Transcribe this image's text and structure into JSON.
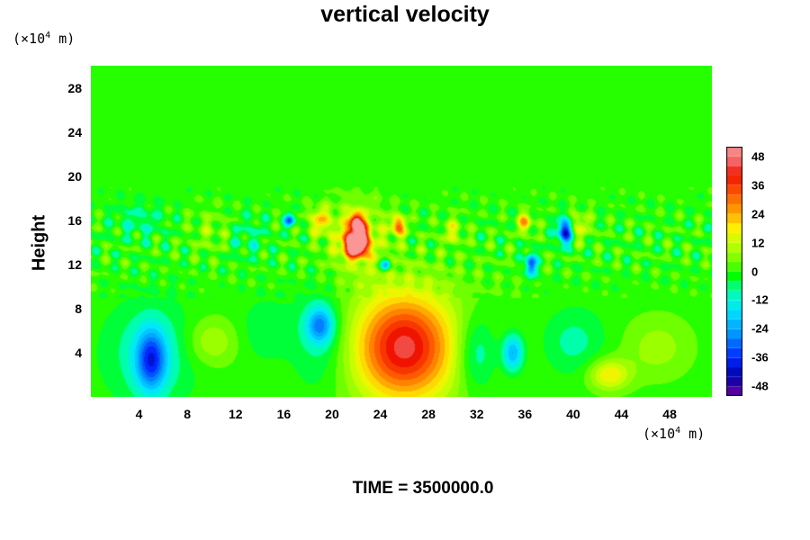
{
  "chart_data": {
    "type": "heatmap",
    "title": "vertical velocity",
    "ylabel": "Height",
    "y_unit": {
      "prefix": "(×10",
      "exp": "4",
      "suffix": " m)"
    },
    "x_unit": {
      "prefix": "(×10",
      "exp": "4",
      "suffix": " m)"
    },
    "x_ticks": [
      "4",
      "8",
      "12",
      "16",
      "20",
      "24",
      "28",
      "32",
      "36",
      "40",
      "44",
      "48"
    ],
    "x_tick_values": [
      4,
      8,
      12,
      16,
      20,
      24,
      28,
      32,
      36,
      40,
      44,
      48
    ],
    "y_ticks": [
      "4",
      "8",
      "12",
      "16",
      "20",
      "24",
      "28"
    ],
    "y_tick_values": [
      4,
      8,
      12,
      16,
      20,
      24,
      28
    ],
    "xlim": [
      0,
      51.5
    ],
    "ylim": [
      0,
      30
    ],
    "colorbar": {
      "ticks": [
        "48",
        "36",
        "24",
        "12",
        "0",
        "-12",
        "-24",
        "-36",
        "-48"
      ],
      "values": [
        48,
        36,
        24,
        12,
        0,
        -12,
        -24,
        -36,
        -48
      ],
      "range": [
        -52,
        52
      ]
    },
    "features": [
      {
        "x": 26,
        "y": 4.5,
        "sx": 2.6,
        "sy": 3.2,
        "v": 34
      },
      {
        "x": 26,
        "y": 4.5,
        "sx": 5.5,
        "sy": 4.5,
        "v": 10
      },
      {
        "x": 5,
        "y": 3.3,
        "sx": 0.9,
        "sy": 2.0,
        "v": -30
      },
      {
        "x": 5,
        "y": 4,
        "sx": 2.5,
        "sy": 3.0,
        "v": -10
      },
      {
        "x": 19,
        "y": 6.5,
        "sx": 0.8,
        "sy": 1.2,
        "v": -25
      },
      {
        "x": 19,
        "y": 5,
        "sx": 1.8,
        "sy": 3.5,
        "v": -10
      },
      {
        "x": 10,
        "y": 5,
        "sx": 1.5,
        "sy": 1.5,
        "v": 10
      },
      {
        "x": 32,
        "y": 4,
        "sx": 1.2,
        "sy": 2.5,
        "v": -14
      },
      {
        "x": 35,
        "y": 4,
        "sx": 0.6,
        "sy": 1.2,
        "v": -24
      },
      {
        "x": 43,
        "y": 2,
        "sx": 1.2,
        "sy": 1.0,
        "v": 18
      },
      {
        "x": 47,
        "y": 4.5,
        "sx": 2.0,
        "sy": 2.0,
        "v": 8
      },
      {
        "x": 40,
        "y": 5,
        "sx": 1.8,
        "sy": 2.0,
        "v": -8
      },
      {
        "x": 14.5,
        "y": 6,
        "sx": 1.5,
        "sy": 2.0,
        "v": -6
      },
      {
        "x": 22,
        "y": 15.8,
        "sx": 0.35,
        "sy": 0.6,
        "v": 48
      },
      {
        "x": 21.5,
        "y": 14,
        "sx": 0.4,
        "sy": 0.8,
        "v": 44
      },
      {
        "x": 22.5,
        "y": 14.5,
        "sx": 0.4,
        "sy": 0.8,
        "v": 42
      },
      {
        "x": 22.2,
        "y": 13.5,
        "sx": 0.5,
        "sy": 0.6,
        "v": 36
      },
      {
        "x": 22,
        "y": 14.5,
        "sx": 1.8,
        "sy": 2.2,
        "v": 14
      },
      {
        "x": 25.5,
        "y": 15.5,
        "sx": 0.4,
        "sy": 0.6,
        "v": 30
      },
      {
        "x": 19,
        "y": 16,
        "sx": 0.6,
        "sy": 0.8,
        "v": 18
      },
      {
        "x": 39.3,
        "y": 15,
        "sx": 0.4,
        "sy": 0.8,
        "v": -44
      },
      {
        "x": 36.5,
        "y": 12,
        "sx": 0.3,
        "sy": 0.7,
        "v": -36
      },
      {
        "x": 16.5,
        "y": 16,
        "sx": 0.3,
        "sy": 0.4,
        "v": -30
      },
      {
        "x": 36,
        "y": 15.8,
        "sx": 0.4,
        "sy": 0.6,
        "v": 24
      },
      {
        "x": 24.5,
        "y": 12,
        "sx": 0.3,
        "sy": 0.4,
        "v": -28
      },
      {
        "x": 30,
        "y": 15,
        "sx": 0.6,
        "sy": 0.8,
        "v": 12
      },
      {
        "x": 40.5,
        "y": 15.5,
        "sx": 0.7,
        "sy": 0.9,
        "v": 12
      },
      {
        "x": 10,
        "y": 15,
        "sx": 1.2,
        "sy": 1.4,
        "v": 6
      },
      {
        "x": 13,
        "y": 14.5,
        "sx": 1.2,
        "sy": 1.4,
        "v": -6
      },
      {
        "x": 4,
        "y": 16,
        "sx": 1.5,
        "sy": 1.2,
        "v": -7
      }
    ]
  },
  "time_label": "TIME = 3500000.0"
}
